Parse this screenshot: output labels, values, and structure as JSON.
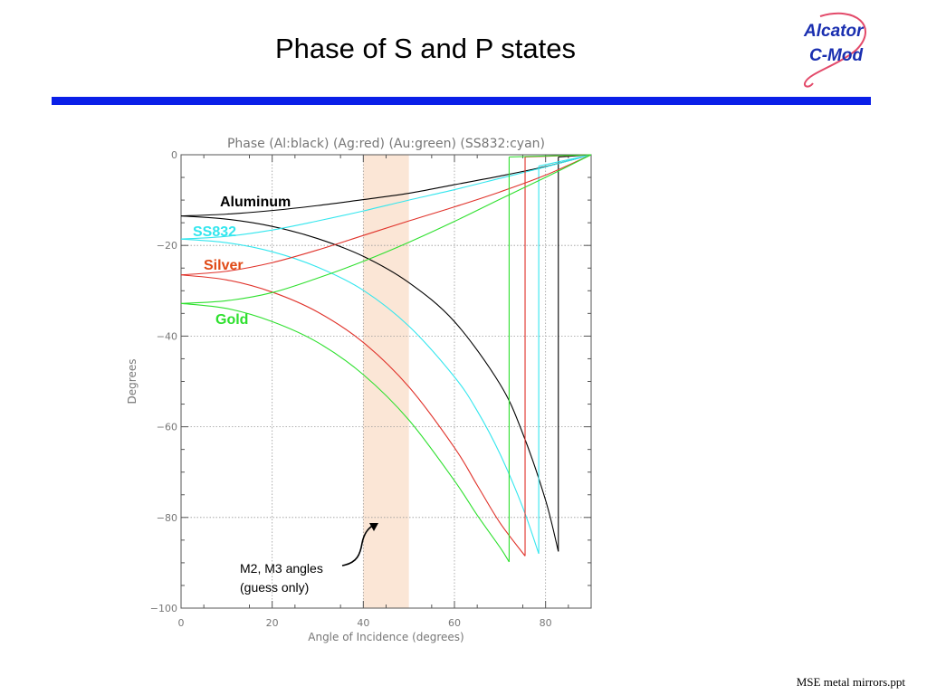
{
  "slide": {
    "title": "Phase of S and P states",
    "footer": "MSE metal mirrors.ppt",
    "logo_line1": "Alcator",
    "logo_line2": "C-Mod"
  },
  "colors": {
    "header_bar": "#0a1fe8",
    "highlight_band": "#fbe6d6",
    "logo_text": "#1a2fb0",
    "logo_swoosh": "#e34a6a"
  },
  "chart_data": {
    "type": "line",
    "title": "Phase (Al:black) (Ag:red) (Au:green) (SS832:cyan)",
    "xlabel": "Angle of Incidence (degrees)",
    "ylabel": "Degrees",
    "xlim": [
      0,
      90
    ],
    "ylim": [
      -100,
      0
    ],
    "xticks": [
      "0",
      "20",
      "40",
      "60",
      "80"
    ],
    "yticks": [
      "0",
      "−20",
      "−40",
      "−60",
      "−80",
      "−100"
    ],
    "grid": "dotted",
    "highlight_band": {
      "x": [
        40,
        50
      ],
      "label": "M2, M3 angles",
      "label2": "(guess only)"
    },
    "series": [
      {
        "name": "Aluminum",
        "color": "#000000",
        "label_color": "#000000",
        "upper": {
          "x": [
            0,
            10,
            20,
            30,
            40,
            50,
            60,
            70,
            80,
            90
          ],
          "y": [
            -13.5,
            -13.1,
            -12.3,
            -11.2,
            -9.9,
            -8.5,
            -6.6,
            -4.7,
            -2.6,
            0
          ]
        },
        "lower": {
          "x": [
            0,
            10,
            20,
            30,
            40,
            50,
            60,
            70,
            75,
            80,
            82.8
          ],
          "y": [
            -13.5,
            -14.2,
            -15.8,
            -18.5,
            -22.4,
            -28.2,
            -36.8,
            -50.6,
            -61.5,
            -76.2,
            -87.5
          ]
        },
        "jump": {
          "x": 82.8,
          "from": -87.5,
          "to": -0.5
        }
      },
      {
        "name": "SS832",
        "color": "#33e6ee",
        "label_color": "#33e6ee",
        "upper": {
          "x": [
            0,
            10,
            20,
            30,
            40,
            50,
            60,
            70,
            80,
            90
          ],
          "y": [
            -18.6,
            -18.0,
            -16.6,
            -14.6,
            -12.4,
            -10.0,
            -7.7,
            -5.2,
            -2.7,
            0
          ]
        },
        "lower": {
          "x": [
            0,
            10,
            20,
            30,
            40,
            50,
            60,
            65,
            70,
            75,
            78.5
          ],
          "y": [
            -18.6,
            -19.4,
            -21.4,
            -24.8,
            -29.9,
            -37.8,
            -49.0,
            -56.5,
            -66.0,
            -77.8,
            -88.0
          ]
        },
        "jump": {
          "x": 78.5,
          "from": -88.0,
          "to": -2.5
        }
      },
      {
        "name": "Silver",
        "color": "#e0322a",
        "label_color": "#e04a16",
        "upper": {
          "x": [
            0,
            10,
            20,
            30,
            40,
            50,
            60,
            70,
            80,
            90
          ],
          "y": [
            -26.5,
            -25.7,
            -23.8,
            -21.0,
            -17.8,
            -14.6,
            -11.5,
            -8.2,
            -4.5,
            0
          ]
        },
        "lower": {
          "x": [
            0,
            10,
            20,
            30,
            40,
            50,
            60,
            65,
            70,
            75.5
          ],
          "y": [
            -26.5,
            -27.6,
            -30.3,
            -34.7,
            -41.4,
            -51.2,
            -64.6,
            -72.9,
            -81.2,
            -88.5
          ]
        },
        "jump": {
          "x": 75.5,
          "from": -88.5,
          "to": -0.5
        }
      },
      {
        "name": "Gold",
        "color": "#2ee02e",
        "label_color": "#2ee02e",
        "upper": {
          "x": [
            0,
            10,
            20,
            30,
            40,
            50,
            60,
            70,
            80,
            90
          ],
          "y": [
            -32.8,
            -32.2,
            -30.4,
            -27.2,
            -23.5,
            -19.3,
            -14.7,
            -9.8,
            -5.0,
            0
          ]
        },
        "lower": {
          "x": [
            0,
            10,
            20,
            30,
            40,
            50,
            60,
            65,
            70,
            72
          ],
          "y": [
            -32.8,
            -33.9,
            -36.8,
            -41.4,
            -48.5,
            -58.5,
            -71.9,
            -79.5,
            -86.6,
            -89.8
          ]
        },
        "jump": {
          "x": 72.0,
          "from": -89.8,
          "to": -0.5
        }
      }
    ]
  }
}
